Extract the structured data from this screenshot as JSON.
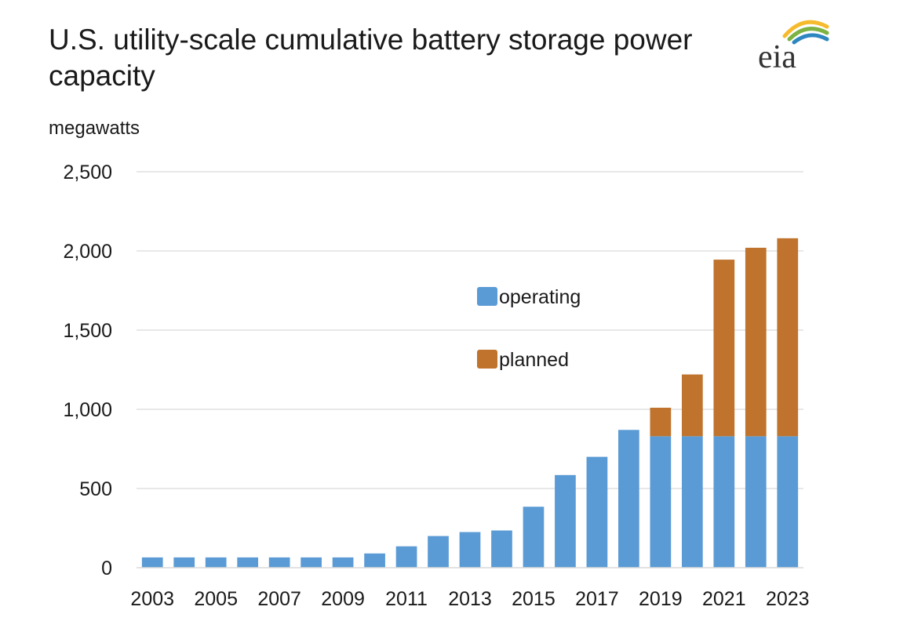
{
  "chart_data": {
    "type": "bar",
    "stacked": true,
    "title": "U.S. utility-scale cumulative battery storage power capacity",
    "ylabel": "megawatts",
    "xlabel": "",
    "ylim": [
      0,
      2500
    ],
    "yticks": [
      0,
      500,
      1000,
      1500,
      2000,
      2500
    ],
    "ytick_labels": [
      "0",
      "500",
      "1,000",
      "1,500",
      "2,000",
      "2,500"
    ],
    "grid": "horizontal",
    "legend_position": "center-right",
    "categories": [
      "2003",
      "2004",
      "2005",
      "2006",
      "2007",
      "2008",
      "2009",
      "2010",
      "2011",
      "2012",
      "2013",
      "2014",
      "2015",
      "2016",
      "2017",
      "2018",
      "2019",
      "2020",
      "2021",
      "2022",
      "2023"
    ],
    "xtick_labels": [
      "2003",
      "2005",
      "2007",
      "2009",
      "2011",
      "2013",
      "2015",
      "2017",
      "2019",
      "2021",
      "2023"
    ],
    "series": [
      {
        "name": "operating",
        "color": "#5b9bd5",
        "values": [
          65,
          65,
          65,
          65,
          65,
          65,
          65,
          90,
          135,
          200,
          225,
          235,
          385,
          585,
          700,
          870,
          830,
          830,
          830,
          830,
          830
        ]
      },
      {
        "name": "planned",
        "color": "#bf732c",
        "values": [
          0,
          0,
          0,
          0,
          0,
          0,
          0,
          0,
          0,
          0,
          0,
          0,
          0,
          0,
          0,
          0,
          180,
          390,
          1115,
          1190,
          1250
        ]
      }
    ]
  },
  "logo": {
    "text": "eia",
    "colors": [
      "#f6bb2c",
      "#7cb342",
      "#2e86c1"
    ]
  }
}
